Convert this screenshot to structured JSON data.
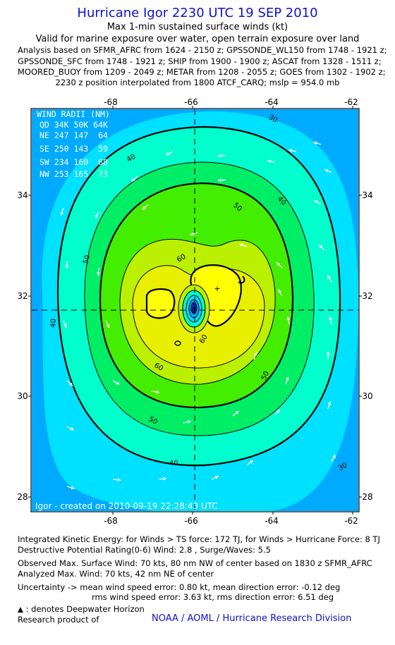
{
  "header": {
    "title": "Hurricane Igor 2230 UTC 19 SEP 2010",
    "subtitle": "Max 1-min sustained surface winds (kt)",
    "validity": "Valid for marine exposure over water, open terrain exposure over land",
    "analysis_lines": [
      "Analysis based on SFMR_AFRC from 1624 - 2150 z; GPSSONDE_WL150 from 1748 - 1921 z;",
      "GPSSONDE_SFC from 1748 - 1921 z; SHIP from 1900 - 1900 z; ASCAT from 1328 - 1511 z;",
      "MOORED_BUOY from 1209 - 2049 z; METAR from 1208 - 2055 z; GOES from 1302 - 1902 z;"
    ],
    "position_note": "2230 z position interpolated from 1800 ATCF_CARQ; mslp = 954.0 mb"
  },
  "map": {
    "lon_ticks": [
      "-68",
      "-66",
      "-64",
      "-62"
    ],
    "lat_ticks": [
      "34",
      "32",
      "30",
      "28"
    ],
    "wind_radii": {
      "title": "WIND RADII (NM)",
      "header": "QD 34K 50K 64K",
      "rows": [
        "NE 247 147  64",
        "SE 250 143  59",
        "SW 234 160  68",
        "NW 253 165  73"
      ]
    },
    "contour_labels": {
      "c30": "30",
      "c40": "40",
      "c50": "50",
      "c60": "60"
    },
    "credit": "Igor - created on 2010-09-19 22:28:43 UTC",
    "colors": {
      "c20": "#00aaff",
      "c30": "#00e0ff",
      "c40": "#00ffcc",
      "c50": "#00ee66",
      "c55": "#44ee00",
      "c60": "#bbf000",
      "c65": "#e8f000",
      "c70": "#ffff00",
      "eye": "#0020a0"
    }
  },
  "footer": {
    "ike": "Integrated Kinetic Energy:  for Winds > TS force: 172 TJ,  for Winds > Hurricane Force: 8 TJ",
    "dpr": "Destructive Potential Rating(0-6)   Wind: 2.8 , Surge/Waves: 5.5",
    "obs": "Observed Max. Surface Wind: 70 kts, 80 nm NW of center based on 1830 z SFMR_AFRC",
    "analyzed": "Analyzed Max. Wind: 70 kts, 42 nm NE of center",
    "unc1": "Uncertainty -> mean wind speed error: 0.80 kt,   mean direction error:  -0.12 deg",
    "unc2": "rms wind speed error: 3.63 kt,   rms direction error: 6.51 deg",
    "deepwater": ": denotes Deepwater Horizon",
    "research": "Research product of",
    "org": "NOAA / AOML / Hurricane Research Division"
  }
}
